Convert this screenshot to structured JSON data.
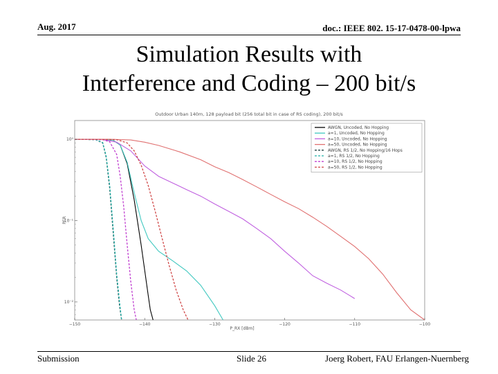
{
  "header": {
    "left": "Aug. 2017",
    "right": "doc.: IEEE 802. 15-17-0478-00-lpwa"
  },
  "title": {
    "line1": "Simulation Results with",
    "line2": "Interference and Coding – 200 bit/s"
  },
  "footer": {
    "left": "Submission",
    "center": "Slide 26",
    "right": "Joerg Robert, FAU Erlangen-Nuernberg"
  },
  "chart_data": {
    "type": "line",
    "title": "Outdoor Urban 140m, 128 payload bit (256 total bit in case of RS coding), 200 bit/s",
    "xlabel": "P_RX [dBm]",
    "ylabel": "PER",
    "xlim": [
      -150,
      -100
    ],
    "ylim": [
      0.006,
      1.7
    ],
    "yscale": "log",
    "xticks": [
      -150,
      -140,
      -130,
      -120,
      -110,
      -100
    ],
    "xtick_labels": [
      "−150",
      "−140",
      "−130",
      "−120",
      "−110",
      "−100"
    ],
    "ytick_labels": [
      "10⁰",
      "10⁻¹",
      "10⁻²"
    ],
    "legend_position": "top-right",
    "series": [
      {
        "name": "AWGN, Uncoded, No Hopping",
        "color": "#000000",
        "style": "solid",
        "x": [
          -150,
          -146,
          -144.5,
          -143.5,
          -142.5,
          -141.5,
          -140.5,
          -139.5,
          -139.2,
          -138.8
        ],
        "y": [
          1.0,
          1.0,
          0.97,
          0.85,
          0.5,
          0.18,
          0.05,
          0.012,
          0.008,
          0.006
        ]
      },
      {
        "name": "a=1, Uncoded, No Hopping",
        "color": "#40c8c0",
        "style": "solid",
        "x": [
          -150,
          -146,
          -144.5,
          -143.5,
          -142.5,
          -141.5,
          -140.5,
          -139.5,
          -138,
          -136,
          -134,
          -132,
          -130,
          -128.8
        ],
        "y": [
          1.0,
          1.0,
          0.97,
          0.85,
          0.52,
          0.22,
          0.1,
          0.06,
          0.042,
          0.032,
          0.024,
          0.016,
          0.009,
          0.006
        ]
      },
      {
        "name": "a=10, Uncoded, No Hopping",
        "color": "#c060e0",
        "style": "solid",
        "x": [
          -150,
          -146,
          -144,
          -142,
          -140,
          -138,
          -136,
          -134,
          -132,
          -130,
          -128,
          -126,
          -124,
          -122,
          -120,
          -118,
          -116,
          -114,
          -112,
          -110
        ],
        "y": [
          1.0,
          0.99,
          0.92,
          0.72,
          0.47,
          0.35,
          0.29,
          0.24,
          0.2,
          0.16,
          0.13,
          0.105,
          0.08,
          0.06,
          0.042,
          0.03,
          0.021,
          0.017,
          0.014,
          0.011
        ]
      },
      {
        "name": "a=50, Uncoded, No Hopping",
        "color": "#e07070",
        "style": "solid",
        "x": [
          -150,
          -145,
          -142,
          -140,
          -138,
          -135,
          -132,
          -130,
          -128,
          -126,
          -124,
          -122,
          -120,
          -118,
          -116,
          -114,
          -112,
          -110,
          -108,
          -106,
          -104,
          -102,
          -100
        ],
        "y": [
          1.0,
          1.0,
          0.98,
          0.92,
          0.84,
          0.7,
          0.56,
          0.46,
          0.39,
          0.32,
          0.26,
          0.21,
          0.17,
          0.14,
          0.11,
          0.085,
          0.064,
          0.048,
          0.034,
          0.022,
          0.013,
          0.008,
          0.006
        ]
      },
      {
        "name": "AWGN, RS 1/2, No Hopping/16 Hops",
        "color": "#204040",
        "style": "dashed",
        "x": [
          -150,
          -147,
          -146,
          -145.5,
          -145,
          -144.5,
          -144,
          -143.6,
          -143.3
        ],
        "y": [
          1.0,
          0.99,
          0.9,
          0.6,
          0.25,
          0.07,
          0.02,
          0.009,
          0.006
        ]
      },
      {
        "name": "a=1, RS 1/2, No Hopping",
        "color": "#20b0a8",
        "style": "dashed",
        "x": [
          -150,
          -147,
          -146,
          -145.5,
          -145,
          -144.5,
          -144,
          -143.6,
          -143.3
        ],
        "y": [
          1.0,
          0.99,
          0.91,
          0.62,
          0.27,
          0.08,
          0.022,
          0.01,
          0.006
        ]
      },
      {
        "name": "a=10, RS 1/2, No Hopping",
        "color": "#c040d0",
        "style": "dashed",
        "x": [
          -150,
          -146,
          -145,
          -144,
          -143.5,
          -143,
          -142.5,
          -142,
          -141.5,
          -141.2
        ],
        "y": [
          1.0,
          0.99,
          0.93,
          0.65,
          0.35,
          0.15,
          0.05,
          0.018,
          0.008,
          0.006
        ]
      },
      {
        "name": "a=50, RS 1/2, No Hopping",
        "color": "#d04848",
        "style": "dashed",
        "x": [
          -150,
          -144,
          -142.5,
          -141.5,
          -140.5,
          -139.5,
          -138.5,
          -137.5,
          -136.5,
          -135.5,
          -134.5,
          -133.8
        ],
        "y": [
          1.0,
          0.99,
          0.9,
          0.72,
          0.48,
          0.27,
          0.13,
          0.06,
          0.028,
          0.014,
          0.008,
          0.006
        ]
      }
    ]
  }
}
